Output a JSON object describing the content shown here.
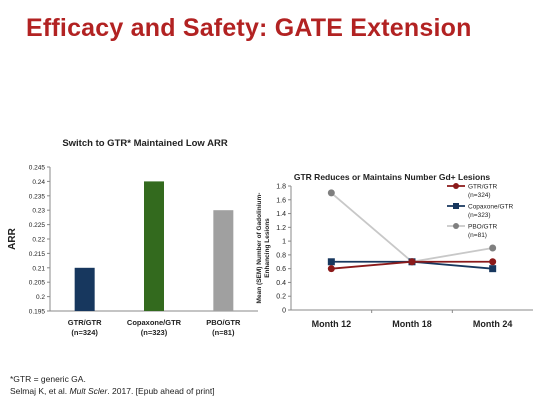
{
  "slide": {
    "title": "Efficacy and Safety: GATE Extension"
  },
  "chart_data": [
    {
      "type": "bar",
      "title": "Switch to GTR* Maintained Low ARR",
      "ylabel": "ARR",
      "ylim": [
        0.195,
        0.245
      ],
      "yticks": [
        "0.195",
        "0.2",
        "0.205",
        "0.21",
        "0.215",
        "0.22",
        "0.225",
        "0.23",
        "0.235",
        "0.24",
        "0.245"
      ],
      "categories": [
        "GTR/GTR",
        "Copaxone/GTR",
        "PBO/GTR"
      ],
      "category_subs": [
        "(n=324)",
        "(n=323)",
        "(n=81)"
      ],
      "values": [
        0.21,
        0.24,
        0.23
      ],
      "colors": [
        "#17375e",
        "#336a1e",
        "#a0a0a0"
      ],
      "grid": false
    },
    {
      "type": "line",
      "title": "GTR Reduces or Maintains Number Gd+ Lesions",
      "ylabel": [
        "Mean (SEM) Number of Gadolinium-",
        "Enhancing Lesions"
      ],
      "ylim": [
        0,
        1.8
      ],
      "yticks": [
        "0",
        "0.2",
        "0.4",
        "0.6",
        "0.8",
        "1",
        "1.2",
        "1.4",
        "1.6",
        "1.8"
      ],
      "categories": [
        "Month 12",
        "Month 18",
        "Month 24"
      ],
      "series": [
        {
          "name": "GTR/GTR",
          "sub": "(n=324)",
          "values": [
            0.6,
            0.7,
            0.7
          ],
          "color": "#8b1a1a",
          "marker": "circle"
        },
        {
          "name": "Copaxone/GTR",
          "sub": "(n=323)",
          "values": [
            0.7,
            0.7,
            0.6
          ],
          "color": "#17375e",
          "marker": "square"
        },
        {
          "name": "PBO/GTR",
          "sub": "(n=81)",
          "values": [
            1.7,
            0.7,
            0.9
          ],
          "color": "#c8c8c8",
          "marker": "circle",
          "marker_color": "#7f7f7f"
        }
      ],
      "legend": "top-right",
      "grid": false
    }
  ],
  "footnotes": {
    "gtr_def": "*GTR = generic GA.",
    "citation_authors": "Selmaj K, et al. ",
    "citation_journal": "Mult Scler",
    "citation_rest": ". 2017. [Epub ahead of print]"
  }
}
